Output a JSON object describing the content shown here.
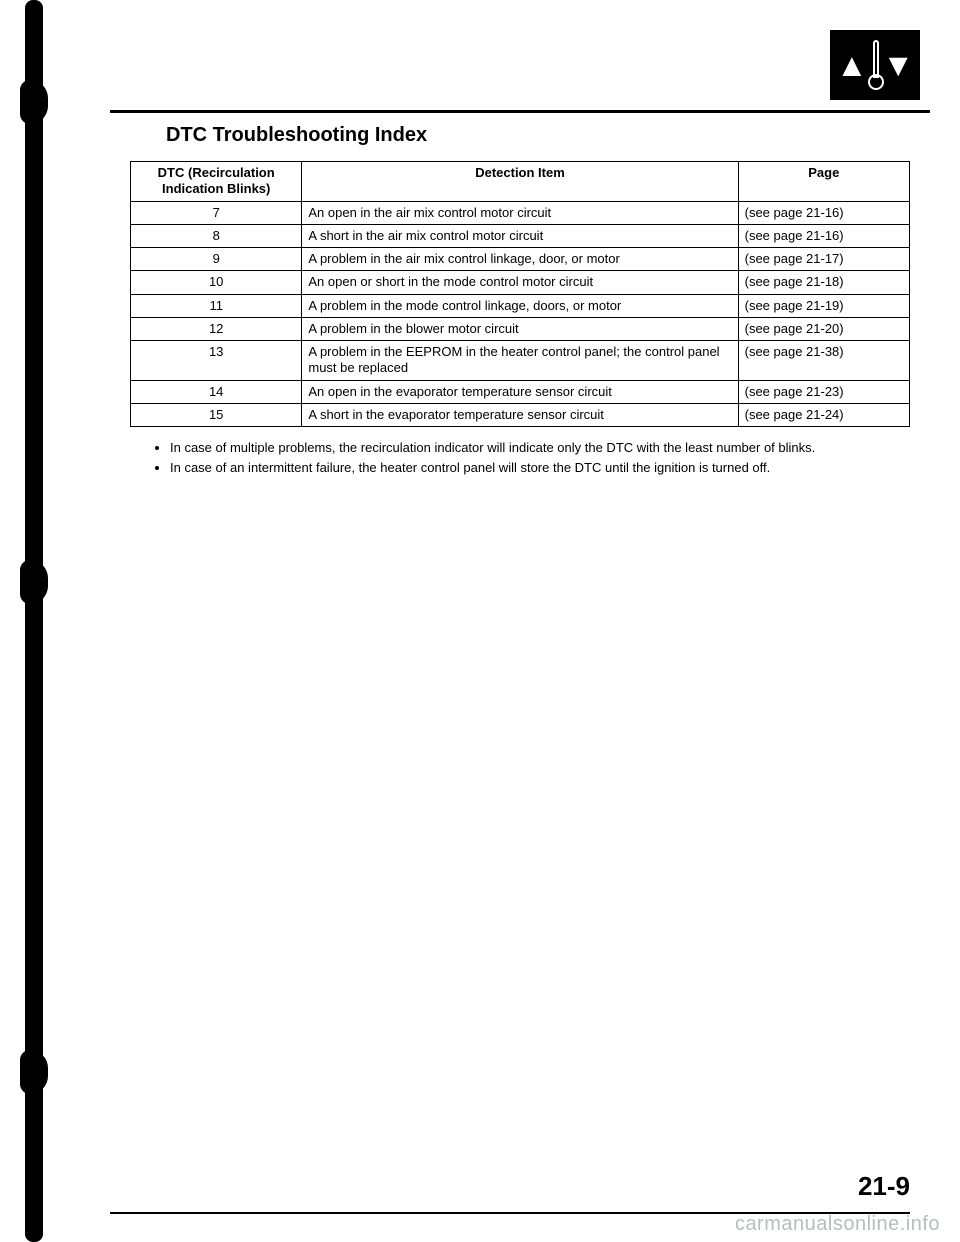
{
  "title": "DTC Troubleshooting Index",
  "table": {
    "headers": {
      "dtc": "DTC (Recirculation Indication Blinks)",
      "item": "Detection Item",
      "page": "Page"
    },
    "rows": [
      {
        "dtc": "7",
        "item": "An open in the air mix control motor circuit",
        "page": "(see page 21-16)"
      },
      {
        "dtc": "8",
        "item": "A short in the air mix control motor circuit",
        "page": "(see page 21-16)"
      },
      {
        "dtc": "9",
        "item": "A problem in the air mix control linkage, door, or motor",
        "page": "(see page 21-17)"
      },
      {
        "dtc": "10",
        "item": "An open or short in the mode control motor circuit",
        "page": "(see page 21-18)"
      },
      {
        "dtc": "11",
        "item": "A problem in the mode control linkage, doors, or motor",
        "page": "(see page 21-19)"
      },
      {
        "dtc": "12",
        "item": "A problem in the blower motor circuit",
        "page": "(see page 21-20)"
      },
      {
        "dtc": "13",
        "item": "A problem in the EEPROM in the heater control panel; the control panel must be replaced",
        "page": "(see page 21-38)"
      },
      {
        "dtc": "14",
        "item": "An open in the evaporator temperature sensor circuit",
        "page": "(see page 21-23)"
      },
      {
        "dtc": "15",
        "item": "A short in the evaporator temperature sensor circuit",
        "page": "(see page 21-24)"
      }
    ]
  },
  "notes": [
    "In case of multiple problems, the recirculation indicator will indicate only the DTC with the least number of blinks.",
    "In case of an intermittent failure, the heater control panel will store the DTC until the ignition is turned off."
  ],
  "page_number": "21-9",
  "watermark": "carmanualsonline.info",
  "colors": {
    "text": "#000000",
    "background": "#ffffff",
    "watermark": "#9aa0a6"
  }
}
